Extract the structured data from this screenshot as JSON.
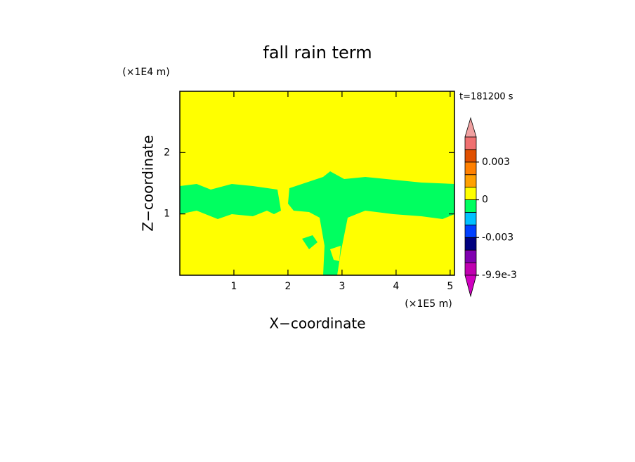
{
  "chart_data": {
    "type": "contour",
    "title": "fall rain term",
    "x_label": "X−coordinate",
    "y_label": "Z−coordinate",
    "x_unit": "(×1E5 m)",
    "y_unit": "(×1E4 m)",
    "time_label": "t=181200 s",
    "xlim": [
      0,
      5.08
    ],
    "xticks": [
      1,
      2,
      3,
      4,
      5
    ],
    "ylim": [
      0,
      3
    ],
    "yticks": [
      1,
      2
    ],
    "background_color": "#ffff00",
    "region_color": "#00ff60",
    "colorbar": {
      "levels": [
        -0.0099,
        -0.0066,
        -0.004,
        -0.003,
        -0.002,
        -0.001,
        0,
        0.001,
        0.002,
        0.003,
        0.004,
        0.006
      ],
      "colors": [
        "#c000b0",
        "#8000b0",
        "#000080",
        "#0040ff",
        "#00c0ff",
        "#00ff60",
        "#ffff00",
        "#ffa000",
        "#ff8000",
        "#e05000",
        "#f07070"
      ],
      "under_color": "#d000c0",
      "over_color": "#f0a0a0",
      "ticks": [
        {
          "value": -0.0099,
          "label": "-9.9e-3"
        },
        -0.003,
        0,
        0.003
      ]
    }
  }
}
